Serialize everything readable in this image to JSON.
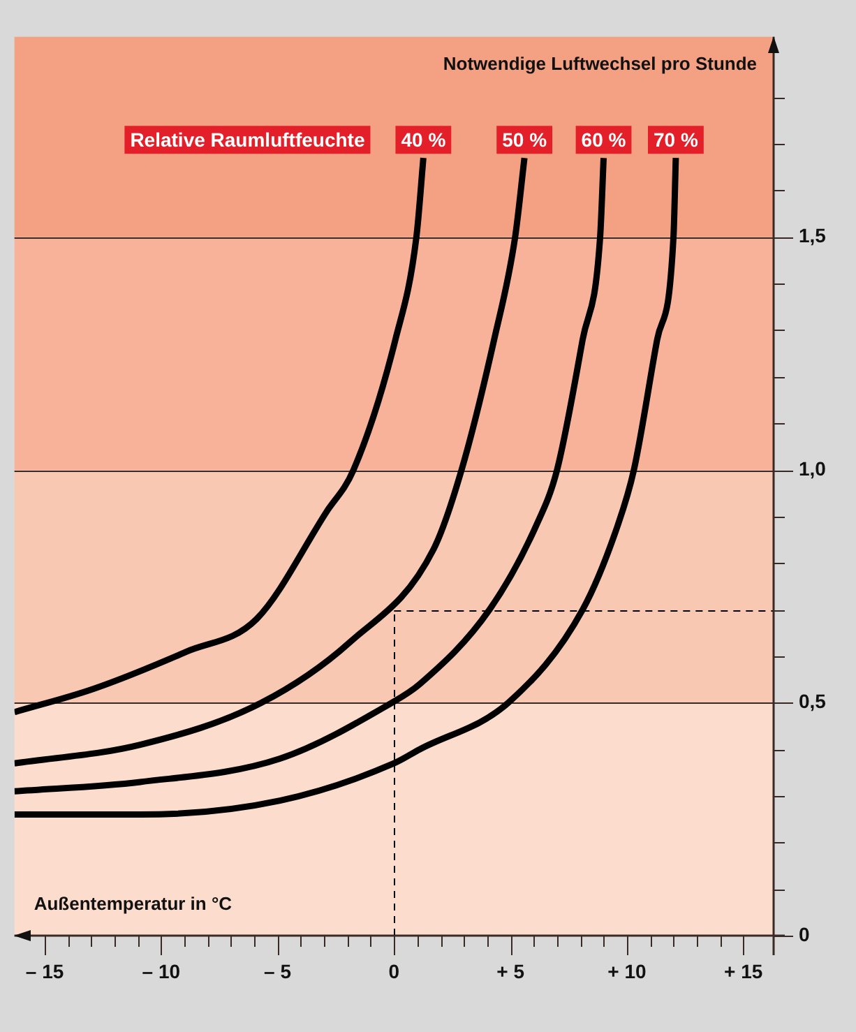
{
  "chart_data": {
    "type": "line",
    "legend_title": "Relative Raumluftfeuchte",
    "xlabel": "Außentemperatur in °C",
    "ylabel": "Notwendige Luftwechsel pro Stunde",
    "xlim": [
      -16.3,
      16.3
    ],
    "ylim": [
      0,
      1.93
    ],
    "xticks": [
      {
        "value": -15,
        "label": "– 15"
      },
      {
        "value": -14,
        "label": null
      },
      {
        "value": -13,
        "label": null
      },
      {
        "value": -12,
        "label": null
      },
      {
        "value": -11,
        "label": null
      },
      {
        "value": -10,
        "label": "– 10"
      },
      {
        "value": -9,
        "label": null
      },
      {
        "value": -8,
        "label": null
      },
      {
        "value": -7,
        "label": null
      },
      {
        "value": -6,
        "label": null
      },
      {
        "value": -5,
        "label": "– 5"
      },
      {
        "value": -4,
        "label": null
      },
      {
        "value": -3,
        "label": null
      },
      {
        "value": -2,
        "label": null
      },
      {
        "value": -1,
        "label": null
      },
      0,
      {
        "value": 1,
        "label": null
      },
      {
        "value": 2,
        "label": null
      },
      {
        "value": 3,
        "label": null
      },
      {
        "value": 4,
        "label": null
      },
      {
        "value": 5,
        "label": "+ 5"
      },
      {
        "value": 6,
        "label": null
      },
      {
        "value": 7,
        "label": null
      },
      {
        "value": 8,
        "label": null
      },
      {
        "value": 9,
        "label": null
      },
      {
        "value": 10,
        "label": "+ 10"
      },
      {
        "value": 11,
        "label": null
      },
      {
        "value": 12,
        "label": null
      },
      {
        "value": 13,
        "label": null
      },
      {
        "value": 14,
        "label": null
      },
      {
        "value": 15,
        "label": "+ 15"
      }
    ],
    "yticks": [
      0,
      {
        "value": 0.1,
        "label": null
      },
      {
        "value": 0.2,
        "label": null
      },
      {
        "value": 0.3,
        "label": null
      },
      {
        "value": 0.4,
        "label": null
      },
      {
        "value": 0.5,
        "label": "0,5"
      },
      {
        "value": 0.6,
        "label": null
      },
      {
        "value": 0.7,
        "label": null
      },
      {
        "value": 0.8,
        "label": null
      },
      {
        "value": 0.9,
        "label": null
      },
      {
        "value": 1.0,
        "label": "1,0"
      },
      {
        "value": 1.1,
        "label": null
      },
      {
        "value": 1.2,
        "label": null
      },
      {
        "value": 1.3,
        "label": null
      },
      {
        "value": 1.4,
        "label": null
      },
      {
        "value": 1.5,
        "label": "1,5"
      },
      {
        "value": 1.6,
        "label": null
      },
      {
        "value": 1.7,
        "label": null
      },
      {
        "value": 1.8,
        "label": null
      }
    ],
    "grid": "y",
    "marker": "none",
    "line_style": "solid",
    "bands": [
      {
        "axis": "y",
        "from": 0,
        "to": 0.5,
        "color": "#fcdccc"
      },
      {
        "axis": "y",
        "from": 0.5,
        "to": 1.0,
        "color": "#f9c8b2"
      },
      {
        "axis": "y",
        "from": 1.0,
        "to": 1.5,
        "color": "#f7b299"
      },
      {
        "axis": "y",
        "from": 1.5,
        "to": 1.93,
        "color": "#f4a083"
      }
    ],
    "ref_lines": [
      {
        "axis": "x",
        "value": 0,
        "line_style": "dashed",
        "color": "#000000"
      },
      {
        "axis": "y",
        "value": 0.7,
        "line_style": "dashed",
        "color": "#000000"
      }
    ],
    "series": [
      {
        "name": "40 %",
        "color": "#000000",
        "x": [
          -16.3,
          -12.9,
          -8.9,
          -5.9,
          -2.9,
          -1.74,
          0.06,
          0.96,
          1.26
        ],
        "values": [
          0.48,
          0.53,
          0.61,
          0.68,
          0.91,
          1.0,
          1.28,
          1.5,
          1.67
        ]
      },
      {
        "name": "50 %",
        "color": "#000000",
        "x": [
          -16.3,
          -10.9,
          -5.7,
          -1.9,
          1.7,
          2.9,
          4.3,
          5.2,
          5.6
        ],
        "values": [
          0.37,
          0.41,
          0.5,
          0.63,
          0.83,
          1.0,
          1.28,
          1.5,
          1.67
        ]
      },
      {
        "name": "60 %",
        "color": "#000000",
        "x": [
          -16.3,
          -10.9,
          -4.9,
          -0.1,
          1.1,
          4.1,
          6.1,
          7.0,
          8.1,
          8.85,
          9.0
        ],
        "values": [
          0.31,
          0.33,
          0.38,
          0.5,
          0.54,
          0.7,
          0.88,
          1.0,
          1.28,
          1.5,
          1.67
        ]
      },
      {
        "name": "70 %",
        "color": "#000000",
        "x": [
          -16.3,
          -10.9,
          -4.9,
          0,
          1.1,
          4.9,
          8.1,
          9.6,
          10.3,
          11.3,
          12.0,
          12.1
        ],
        "values": [
          0.26,
          0.26,
          0.29,
          0.37,
          0.4,
          0.5,
          0.7,
          0.88,
          1.0,
          1.28,
          1.5,
          1.67
        ]
      }
    ]
  }
}
